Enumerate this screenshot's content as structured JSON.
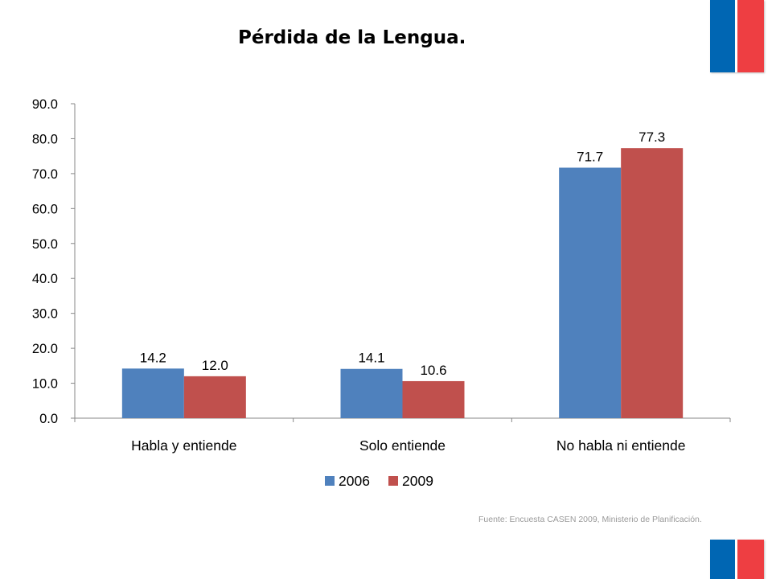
{
  "slide": {
    "title": "Pérdida de la Lengua.",
    "source": "Fuente: Encuesta CASEN 2009, Ministerio de Planificación.",
    "flag_colors": {
      "blue": "#0066b3",
      "red": "#ee3e42"
    }
  },
  "chart_data": {
    "type": "bar",
    "categories": [
      "Habla y entiende",
      "Solo entiende",
      "No habla ni entiende"
    ],
    "series": [
      {
        "name": "2006",
        "color": "#4f81bd",
        "values": [
          14.2,
          14.1,
          71.7
        ],
        "labels": [
          "14.2",
          "14.1",
          "71.7"
        ]
      },
      {
        "name": "2009",
        "color": "#c0504d",
        "values": [
          12.0,
          10.6,
          77.3
        ],
        "labels": [
          "12.0",
          "10.6",
          "77.3"
        ]
      }
    ],
    "title": "",
    "xlabel": "",
    "ylabel": "",
    "ylim": [
      0,
      90
    ],
    "yticks": [
      "0.0",
      "10.0",
      "20.0",
      "30.0",
      "40.0",
      "50.0",
      "60.0",
      "70.0",
      "80.0",
      "90.0"
    ],
    "grid": false,
    "legend": "bottom"
  }
}
